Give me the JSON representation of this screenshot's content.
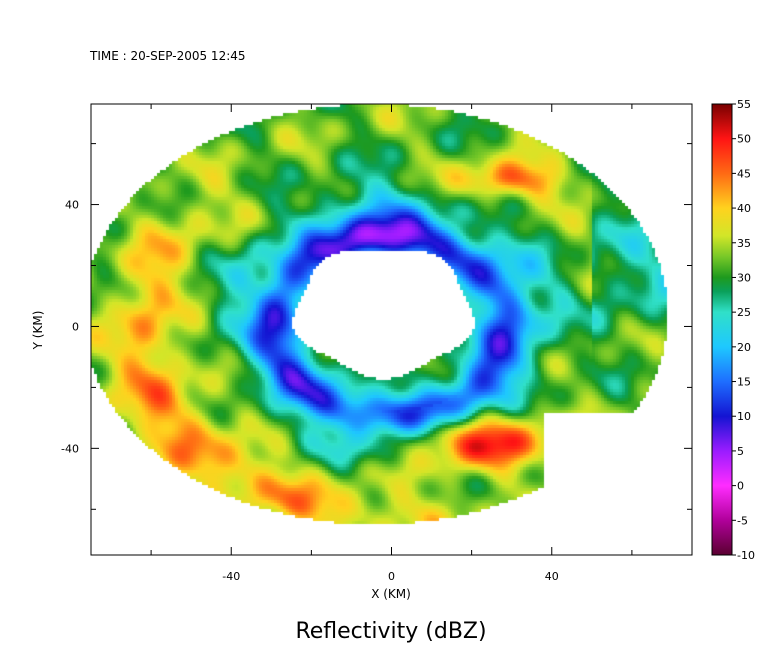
{
  "timestamp_text": "TIME : 20-SEP-2005 12:45",
  "chart_data": {
    "type": "heatmap",
    "title": "Reflectivity (dBZ)",
    "xlabel": "X (KM)",
    "ylabel": "Y (KM)",
    "xlim": [
      -75,
      75
    ],
    "ylim": [
      -75,
      73
    ],
    "x_ticks": [
      -40,
      0,
      40
    ],
    "y_ticks": [
      40,
      0,
      -40
    ],
    "grid": false,
    "colorbar": {
      "label_values": [
        55,
        50,
        45,
        40,
        35,
        30,
        25,
        20,
        15,
        10,
        5,
        0,
        -5,
        -10
      ],
      "range": [
        -10,
        55
      ],
      "position": "right",
      "stops": [
        {
          "v": -10,
          "color": "#5a0030"
        },
        {
          "v": -5,
          "color": "#b0009a"
        },
        {
          "v": 0,
          "color": "#ff2cff"
        },
        {
          "v": 5,
          "color": "#9a1cff"
        },
        {
          "v": 10,
          "color": "#1414d2"
        },
        {
          "v": 15,
          "color": "#1e6eff"
        },
        {
          "v": 20,
          "color": "#1ec8ff"
        },
        {
          "v": 25,
          "color": "#30e0c8"
        },
        {
          "v": 28,
          "color": "#0aa05a"
        },
        {
          "v": 30,
          "color": "#1e9a1e"
        },
        {
          "v": 33,
          "color": "#78c828"
        },
        {
          "v": 36,
          "color": "#d2e628"
        },
        {
          "v": 40,
          "color": "#ffd21e"
        },
        {
          "v": 45,
          "color": "#ff6a14"
        },
        {
          "v": 50,
          "color": "#ff1414"
        },
        {
          "v": 55,
          "color": "#780000"
        }
      ]
    },
    "features": {
      "echo_region": {
        "center": [
          -4,
          4
        ],
        "radius_x": 73,
        "radius_y": 69,
        "east_edge_x": 74,
        "southeast_cutoff_x": 38
      },
      "eye": {
        "center": [
          -2,
          5
        ],
        "radius_x": 22,
        "radius_y": 21,
        "reflectivity": null
      },
      "eyewall_ring": {
        "radius": 29,
        "dbz": 12
      },
      "outer_ring": {
        "radius": 42,
        "dbz": 24
      },
      "rainbands": [
        {
          "name": "southwest band",
          "dbz": 40
        },
        {
          "name": "southeast eyewall max",
          "center": [
            22,
            -38
          ],
          "dbz": 49
        },
        {
          "name": "northeast max",
          "center": [
            30,
            48
          ],
          "dbz": 46
        }
      ],
      "background_dbz": 32
    }
  }
}
